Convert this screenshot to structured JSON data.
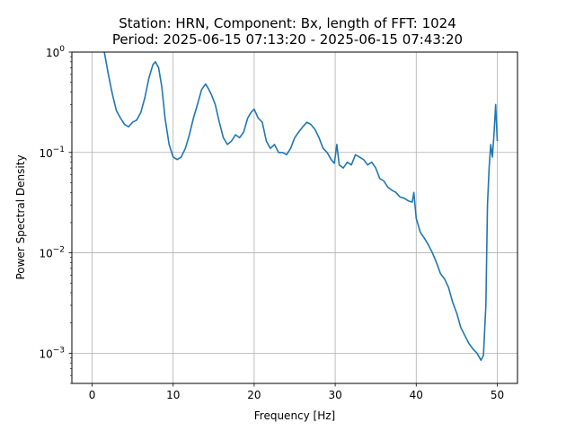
{
  "chart_data": {
    "type": "line",
    "title": "Station: HRN, Component: Bx, length of FFT: 1024",
    "subtitle": "Period: 2025-06-15 07:13:20 - 2025-06-15 07:43:20",
    "xlabel": "Frequency [Hz]",
    "ylabel": "Power Spectral Density",
    "xlim": [
      -2.5,
      52.5
    ],
    "ylim": [
      0.0005,
      1
    ],
    "yscale": "log",
    "grid": true,
    "xticks": [
      0,
      10,
      20,
      30,
      40,
      50
    ],
    "xtick_labels": [
      "0",
      "10",
      "20",
      "30",
      "40",
      "50"
    ],
    "yticks": [
      0.001,
      0.01,
      0.1,
      1
    ],
    "ytick_labels": [
      "10",
      "10",
      "10",
      "10"
    ],
    "ytick_exponents": [
      "−3",
      "−2",
      "−1",
      "0"
    ],
    "line_color": "#1f77b4",
    "series": [
      {
        "x": [
          1.5,
          2.0,
          2.5,
          3.0,
          3.5,
          4.0,
          4.5,
          5.0,
          5.5,
          6.0,
          6.5,
          7.0,
          7.5,
          7.8,
          8.2,
          8.6,
          9.0,
          9.5,
          10.0,
          10.5,
          11.0,
          11.5,
          12.0,
          12.5,
          13.0,
          13.5,
          14.0,
          14.3,
          14.7,
          15.2,
          15.7,
          16.2,
          16.7,
          17.2,
          17.7,
          18.2,
          18.7,
          19.2,
          19.6,
          20.0,
          20.5,
          21.0,
          21.5,
          22.0,
          22.5,
          23.0,
          23.5,
          24.0,
          24.5,
          25.0,
          25.5,
          26.0,
          26.5,
          27.0,
          27.5,
          28.0,
          28.5,
          29.0,
          29.5,
          29.9,
          30.2,
          30.5,
          31.0,
          31.5,
          32.0,
          32.5,
          33.0,
          33.5,
          34.0,
          34.5,
          35.0,
          35.5,
          36.0,
          36.5,
          37.0,
          37.5,
          38.0,
          38.5,
          39.0,
          39.5,
          39.7,
          40.0,
          40.5,
          41.0,
          41.5,
          42.0,
          42.5,
          43.0,
          43.5,
          44.0,
          44.5,
          45.0,
          45.5,
          46.0,
          46.5,
          47.0,
          47.5,
          48.0,
          48.3,
          48.6,
          48.8,
          49.0,
          49.2,
          49.4,
          49.6,
          49.8,
          50.0
        ],
        "y": [
          1.0,
          0.6,
          0.38,
          0.26,
          0.22,
          0.19,
          0.18,
          0.2,
          0.21,
          0.25,
          0.35,
          0.55,
          0.75,
          0.8,
          0.7,
          0.45,
          0.22,
          0.12,
          0.09,
          0.085,
          0.09,
          0.11,
          0.15,
          0.22,
          0.3,
          0.42,
          0.48,
          0.44,
          0.38,
          0.3,
          0.2,
          0.14,
          0.12,
          0.13,
          0.15,
          0.14,
          0.16,
          0.22,
          0.25,
          0.27,
          0.22,
          0.2,
          0.13,
          0.11,
          0.12,
          0.1,
          0.1,
          0.095,
          0.11,
          0.14,
          0.16,
          0.18,
          0.2,
          0.19,
          0.17,
          0.14,
          0.11,
          0.1,
          0.085,
          0.078,
          0.12,
          0.075,
          0.07,
          0.08,
          0.075,
          0.095,
          0.09,
          0.085,
          0.075,
          0.08,
          0.07,
          0.055,
          0.052,
          0.045,
          0.042,
          0.04,
          0.036,
          0.035,
          0.033,
          0.032,
          0.04,
          0.022,
          0.016,
          0.014,
          0.012,
          0.01,
          0.008,
          0.0062,
          0.0055,
          0.0045,
          0.0032,
          0.0025,
          0.0018,
          0.0015,
          0.00125,
          0.0011,
          0.001,
          0.00085,
          0.00095,
          0.003,
          0.03,
          0.07,
          0.12,
          0.09,
          0.15,
          0.3,
          0.13
        ]
      }
    ]
  }
}
